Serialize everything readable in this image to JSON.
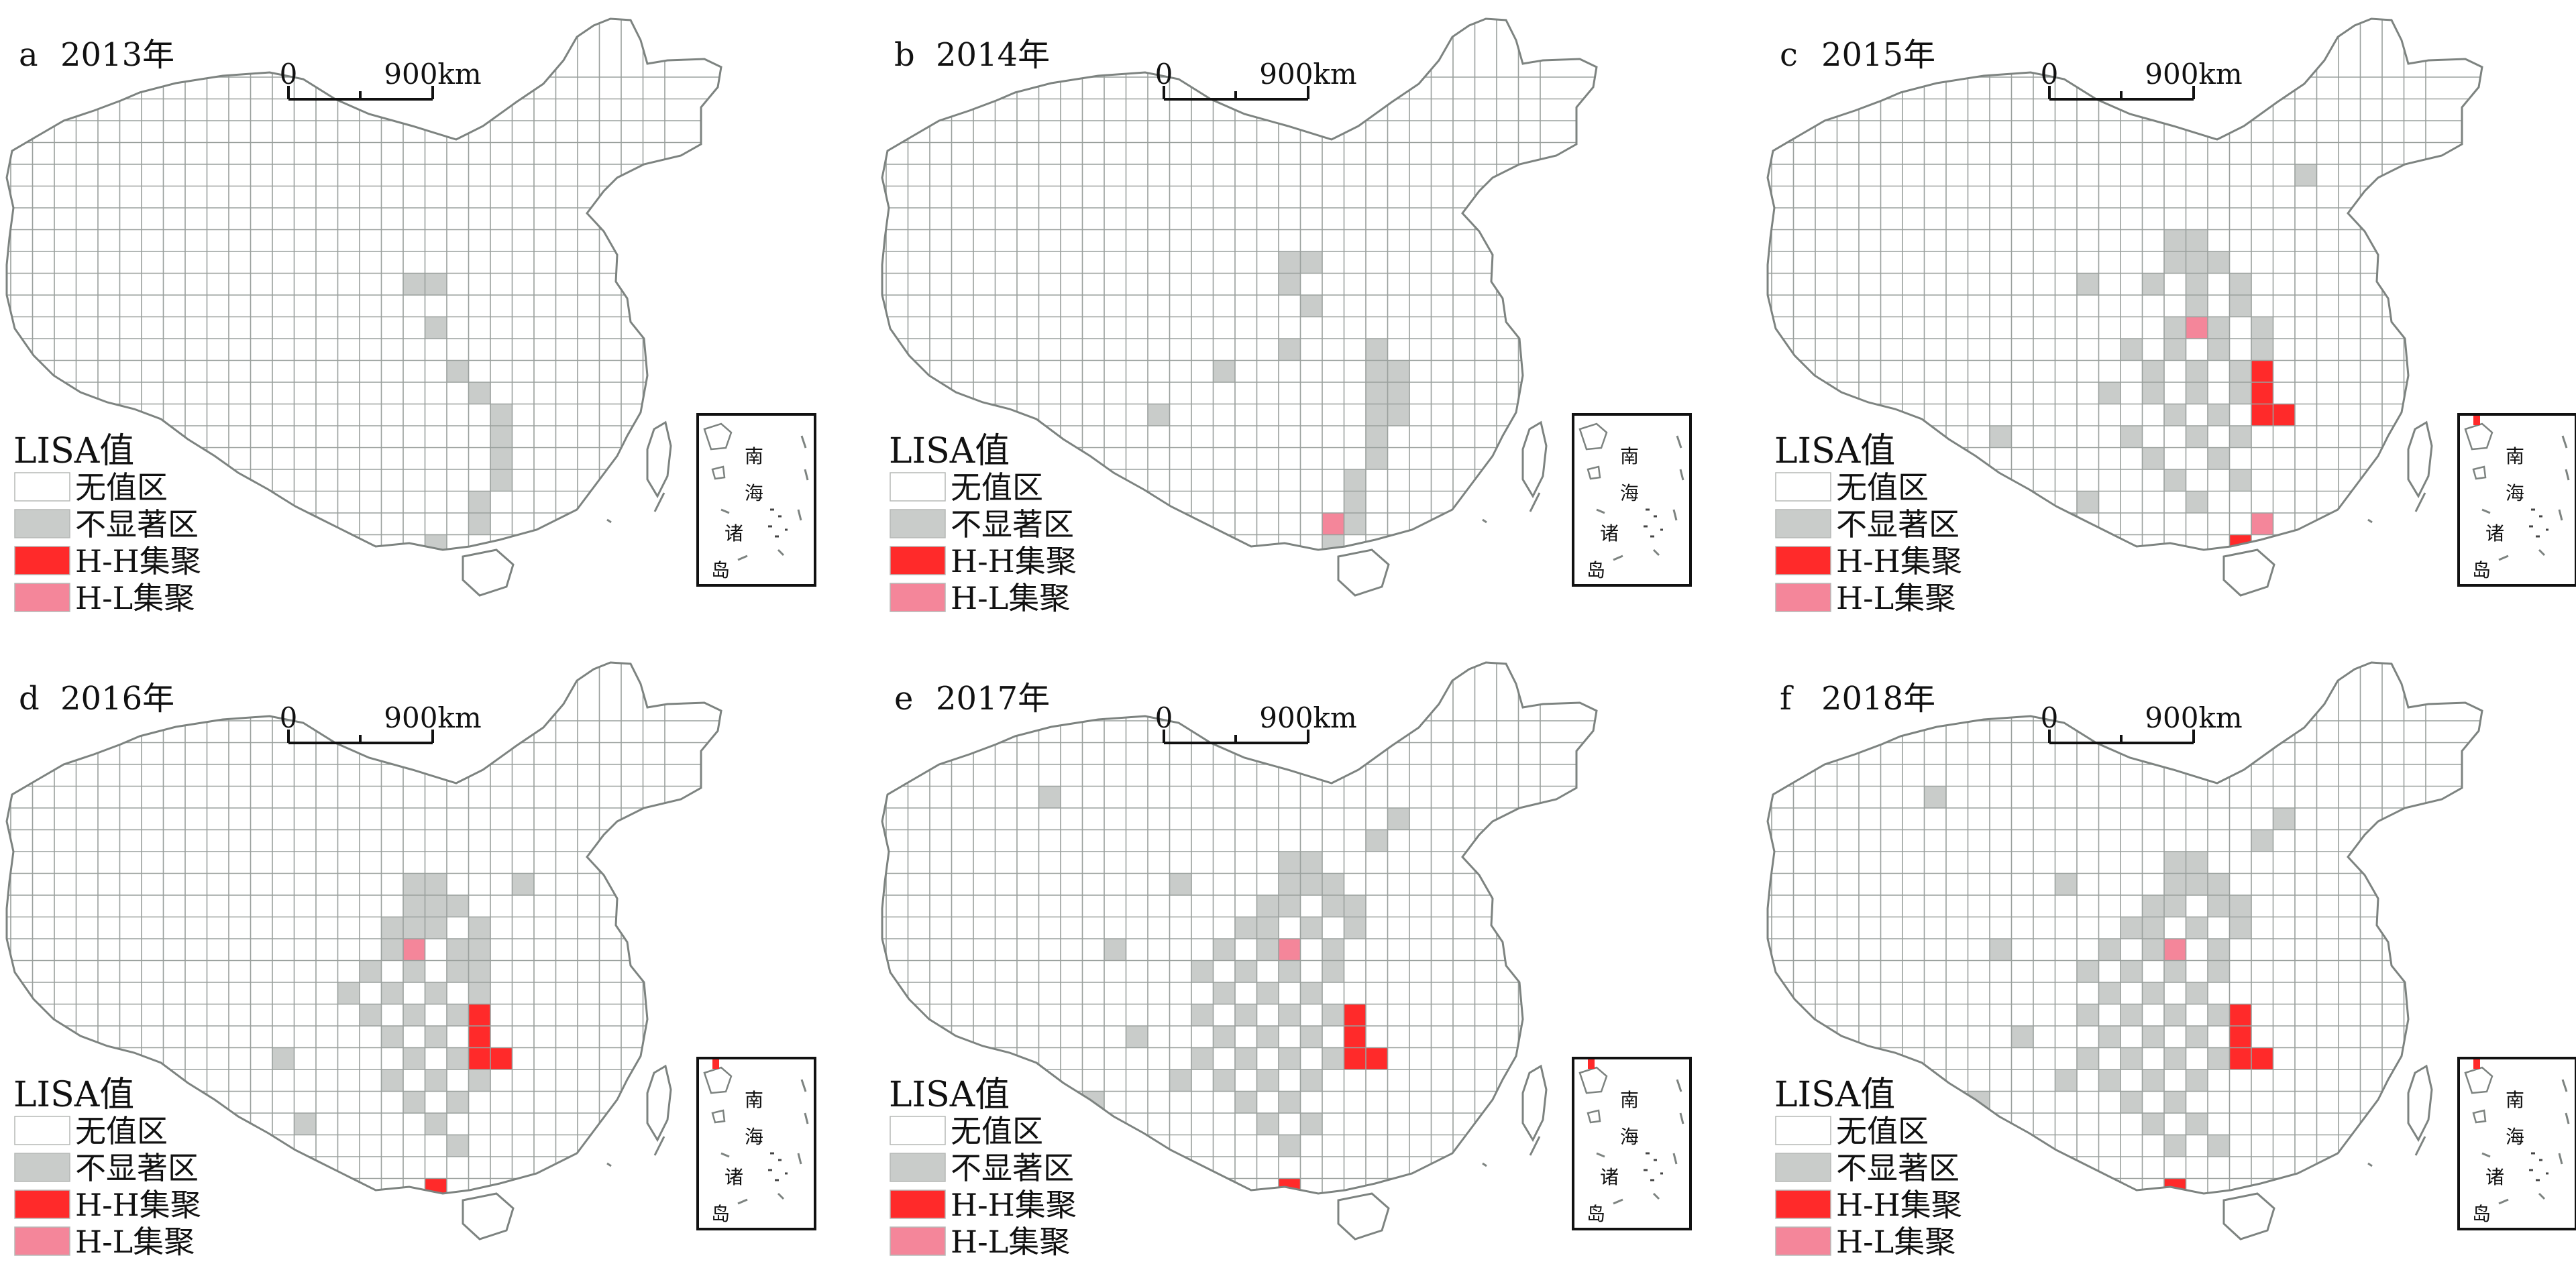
{
  "colors": {
    "no_value": "#ffffff",
    "not_significant": "#c9ccca",
    "hh": "#ff2a2a",
    "hl": "#f4869a",
    "grid_line": "#9aa09d",
    "border": "#7d8380"
  },
  "legend": {
    "title": "LISA值",
    "items": [
      {
        "label": "无值区",
        "color_key": "no_value"
      },
      {
        "label": "不显著区",
        "color_key": "not_significant"
      },
      {
        "label": "H-H集聚",
        "color_key": "hh"
      },
      {
        "label": "H-L集聚",
        "color_key": "hl"
      }
    ]
  },
  "scalebar": {
    "zero": "0",
    "distance": "900km"
  },
  "inset": {
    "chars": [
      "南",
      "海",
      "诸",
      "岛"
    ]
  },
  "panels": [
    {
      "letter": "a",
      "year": "2013年",
      "ns": [
        [
          18,
          9
        ],
        [
          19,
          9
        ],
        [
          19,
          11
        ],
        [
          20,
          13
        ],
        [
          21,
          14
        ],
        [
          22,
          15
        ],
        [
          22,
          16
        ],
        [
          22,
          17
        ],
        [
          22,
          18
        ],
        [
          21,
          19
        ],
        [
          21,
          20
        ],
        [
          19,
          21
        ]
      ],
      "hh": [],
      "hl": []
    },
    {
      "letter": "b",
      "year": "2014年",
      "ns": [
        [
          18,
          8
        ],
        [
          19,
          8
        ],
        [
          18,
          9
        ],
        [
          19,
          10
        ],
        [
          18,
          12
        ],
        [
          22,
          12
        ],
        [
          22,
          13
        ],
        [
          23,
          13
        ],
        [
          22,
          14
        ],
        [
          23,
          14
        ],
        [
          22,
          15
        ],
        [
          23,
          15
        ],
        [
          22,
          16
        ],
        [
          22,
          17
        ],
        [
          21,
          18
        ],
        [
          21,
          19
        ],
        [
          21,
          20
        ],
        [
          20,
          21
        ],
        [
          12,
          15
        ],
        [
          15,
          13
        ]
      ],
      "hh": [],
      "hl": [
        [
          20,
          20
        ]
      ]
    },
    {
      "letter": "c",
      "year": "2015年",
      "ns": [
        [
          18,
          7
        ],
        [
          19,
          7
        ],
        [
          18,
          8
        ],
        [
          19,
          8
        ],
        [
          20,
          8
        ],
        [
          17,
          9
        ],
        [
          19,
          9
        ],
        [
          21,
          9
        ],
        [
          19,
          10
        ],
        [
          21,
          10
        ],
        [
          18,
          11
        ],
        [
          20,
          11
        ],
        [
          22,
          11
        ],
        [
          16,
          12
        ],
        [
          18,
          12
        ],
        [
          20,
          12
        ],
        [
          22,
          12
        ],
        [
          17,
          13
        ],
        [
          19,
          13
        ],
        [
          21,
          13
        ],
        [
          15,
          14
        ],
        [
          17,
          14
        ],
        [
          19,
          14
        ],
        [
          21,
          14
        ],
        [
          18,
          15
        ],
        [
          20,
          15
        ],
        [
          16,
          16
        ],
        [
          19,
          16
        ],
        [
          21,
          16
        ],
        [
          17,
          17
        ],
        [
          20,
          17
        ],
        [
          18,
          18
        ],
        [
          21,
          18
        ],
        [
          14,
          19
        ],
        [
          19,
          19
        ],
        [
          10,
          16
        ],
        [
          6,
          17
        ],
        [
          13,
          20
        ],
        [
          3,
          19
        ],
        [
          11,
          21
        ],
        [
          24,
          4
        ],
        [
          14,
          9
        ]
      ],
      "hh": [
        [
          22,
          13
        ],
        [
          22,
          14
        ],
        [
          22,
          15
        ],
        [
          23,
          15
        ],
        [
          21,
          21
        ]
      ],
      "hl": [
        [
          19,
          11
        ],
        [
          22,
          20
        ]
      ]
    },
    {
      "letter": "d",
      "year": "2016年",
      "ns": [
        [
          18,
          7
        ],
        [
          19,
          7
        ],
        [
          18,
          8
        ],
        [
          19,
          8
        ],
        [
          20,
          8
        ],
        [
          17,
          9
        ],
        [
          18,
          9
        ],
        [
          19,
          9
        ],
        [
          21,
          9
        ],
        [
          17,
          10
        ],
        [
          20,
          10
        ],
        [
          21,
          10
        ],
        [
          16,
          11
        ],
        [
          18,
          11
        ],
        [
          20,
          11
        ],
        [
          21,
          11
        ],
        [
          17,
          12
        ],
        [
          19,
          12
        ],
        [
          21,
          12
        ],
        [
          16,
          13
        ],
        [
          18,
          13
        ],
        [
          20,
          13
        ],
        [
          17,
          14
        ],
        [
          19,
          14
        ],
        [
          21,
          14
        ],
        [
          18,
          15
        ],
        [
          20,
          15
        ],
        [
          17,
          16
        ],
        [
          19,
          16
        ],
        [
          21,
          16
        ],
        [
          18,
          17
        ],
        [
          20,
          17
        ],
        [
          19,
          18
        ],
        [
          20,
          19
        ],
        [
          15,
          12
        ],
        [
          12,
          15
        ],
        [
          4,
          17
        ],
        [
          8,
          19
        ],
        [
          13,
          18
        ],
        [
          23,
          7
        ]
      ],
      "hh": [
        [
          21,
          13
        ],
        [
          21,
          14
        ],
        [
          21,
          15
        ],
        [
          22,
          15
        ],
        [
          19,
          21
        ]
      ],
      "hl": [
        [
          18,
          10
        ]
      ]
    },
    {
      "letter": "e",
      "year": "2017年",
      "ns": [
        [
          18,
          6
        ],
        [
          19,
          6
        ],
        [
          18,
          7
        ],
        [
          19,
          7
        ],
        [
          20,
          7
        ],
        [
          17,
          8
        ],
        [
          18,
          8
        ],
        [
          20,
          8
        ],
        [
          21,
          8
        ],
        [
          16,
          9
        ],
        [
          17,
          9
        ],
        [
          19,
          9
        ],
        [
          21,
          9
        ],
        [
          15,
          10
        ],
        [
          17,
          10
        ],
        [
          18,
          10
        ],
        [
          20,
          10
        ],
        [
          14,
          11
        ],
        [
          16,
          11
        ],
        [
          18,
          11
        ],
        [
          20,
          11
        ],
        [
          15,
          12
        ],
        [
          17,
          12
        ],
        [
          19,
          12
        ],
        [
          14,
          13
        ],
        [
          16,
          13
        ],
        [
          18,
          13
        ],
        [
          20,
          13
        ],
        [
          15,
          14
        ],
        [
          17,
          14
        ],
        [
          19,
          14
        ],
        [
          14,
          15
        ],
        [
          16,
          15
        ],
        [
          18,
          15
        ],
        [
          20,
          15
        ],
        [
          15,
          16
        ],
        [
          17,
          16
        ],
        [
          19,
          16
        ],
        [
          16,
          17
        ],
        [
          18,
          17
        ],
        [
          17,
          18
        ],
        [
          19,
          18
        ],
        [
          18,
          19
        ],
        [
          13,
          16
        ],
        [
          11,
          14
        ],
        [
          9,
          17
        ],
        [
          6,
          19
        ],
        [
          12,
          20
        ],
        [
          22,
          5
        ],
        [
          23,
          4
        ],
        [
          7,
          3
        ],
        [
          13,
          7
        ],
        [
          10,
          10
        ]
      ],
      "hh": [
        [
          21,
          13
        ],
        [
          21,
          14
        ],
        [
          21,
          15
        ],
        [
          22,
          15
        ],
        [
          18,
          21
        ]
      ],
      "hl": [
        [
          18,
          10
        ]
      ]
    },
    {
      "letter": "f",
      "year": "2018年",
      "ns": [
        [
          18,
          6
        ],
        [
          19,
          6
        ],
        [
          18,
          7
        ],
        [
          19,
          7
        ],
        [
          20,
          7
        ],
        [
          17,
          8
        ],
        [
          18,
          8
        ],
        [
          20,
          8
        ],
        [
          21,
          8
        ],
        [
          16,
          9
        ],
        [
          17,
          9
        ],
        [
          19,
          9
        ],
        [
          21,
          9
        ],
        [
          15,
          10
        ],
        [
          17,
          10
        ],
        [
          18,
          10
        ],
        [
          20,
          10
        ],
        [
          14,
          11
        ],
        [
          16,
          11
        ],
        [
          18,
          11
        ],
        [
          20,
          11
        ],
        [
          15,
          12
        ],
        [
          17,
          12
        ],
        [
          19,
          12
        ],
        [
          14,
          13
        ],
        [
          16,
          13
        ],
        [
          18,
          13
        ],
        [
          20,
          13
        ],
        [
          15,
          14
        ],
        [
          17,
          14
        ],
        [
          19,
          14
        ],
        [
          14,
          15
        ],
        [
          16,
          15
        ],
        [
          18,
          15
        ],
        [
          20,
          15
        ],
        [
          15,
          16
        ],
        [
          17,
          16
        ],
        [
          19,
          16
        ],
        [
          16,
          17
        ],
        [
          18,
          17
        ],
        [
          17,
          18
        ],
        [
          19,
          18
        ],
        [
          18,
          19
        ],
        [
          20,
          19
        ],
        [
          13,
          16
        ],
        [
          11,
          14
        ],
        [
          9,
          17
        ],
        [
          6,
          19
        ],
        [
          12,
          20
        ],
        [
          22,
          5
        ],
        [
          23,
          4
        ],
        [
          7,
          3
        ],
        [
          13,
          7
        ],
        [
          10,
          10
        ]
      ],
      "hh": [
        [
          21,
          13
        ],
        [
          21,
          14
        ],
        [
          21,
          15
        ],
        [
          22,
          15
        ],
        [
          18,
          21
        ]
      ],
      "hl": [
        [
          18,
          10
        ]
      ]
    }
  ]
}
